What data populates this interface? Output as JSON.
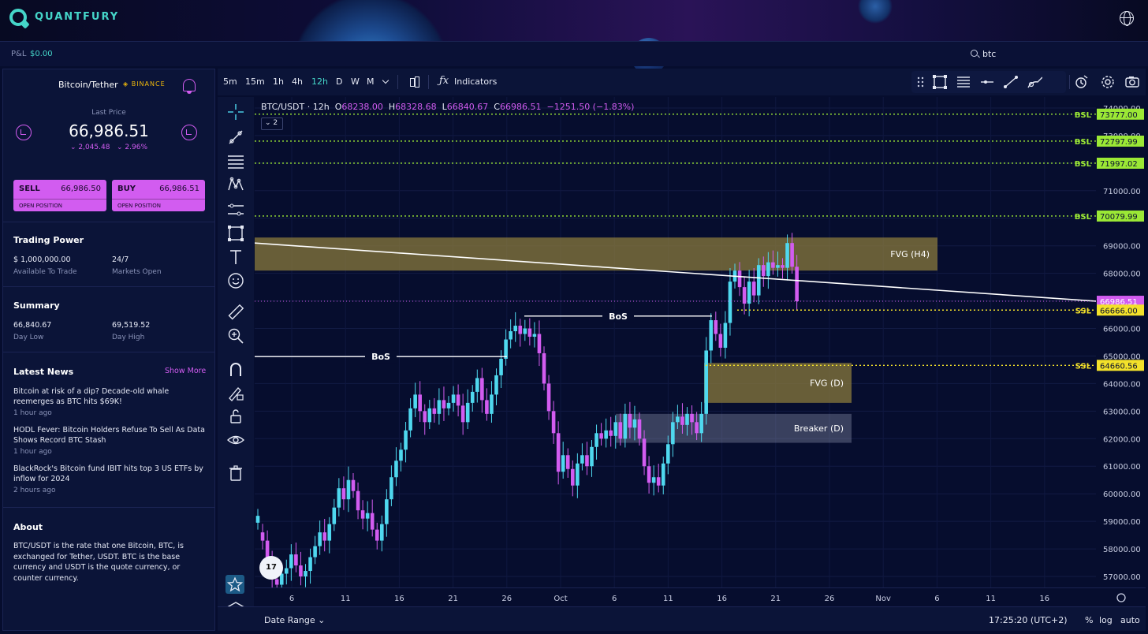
{
  "app": {
    "name": "QUANTFURY"
  },
  "pnl": {
    "label": "P&L",
    "value": "$0.00"
  },
  "search": {
    "value": "btc"
  },
  "instrument": {
    "name": "Bitcoin/Tether",
    "exchange": "BINANCE",
    "last_price_label": "Last Price",
    "last_price": "66,986.51",
    "change_abs": "⌄ 2,045.48",
    "change_pct": "⌄ 2.96%"
  },
  "sell": {
    "label": "SELL",
    "price": "66,986.50",
    "sub": "OPEN POSITION"
  },
  "buy": {
    "label": "BUY",
    "price": "66,986.51",
    "sub": "OPEN POSITION"
  },
  "trading_power": {
    "title": "Trading Power",
    "amount": "$ 1,000,000.00",
    "amount_label": "Available To Trade",
    "hours": "24/7",
    "hours_label": "Markets Open"
  },
  "summary": {
    "title": "Summary",
    "low": "66,840.67",
    "low_label": "Day Low",
    "high": "69,519.52",
    "high_label": "Day High"
  },
  "news": {
    "title": "Latest News",
    "show_more": "Show More",
    "items": [
      {
        "title": "Bitcoin at risk of a dip? Decade-old whale reemerges as BTC hits $69K!",
        "time": "1 hour ago"
      },
      {
        "title": "HODL Fever: Bitcoin Holders Refuse To Sell As Data Shows Record BTC Stash",
        "time": "1 hour ago"
      },
      {
        "title": "BlackRock's Bitcoin fund IBIT hits top 3 US ETFs by inflow for 2024",
        "time": "2 hours ago"
      }
    ]
  },
  "about": {
    "title": "About",
    "text": "BTC/USDT is the rate that one Bitcoin, BTC, is exchanged for Tether, USDT. BTC is the base currency and USDT is the quote currency, or counter currency."
  },
  "toolbar": {
    "timeframes": [
      "5m",
      "15m",
      "1h",
      "4h",
      "12h",
      "D",
      "W",
      "M"
    ],
    "active_timeframe": "12h",
    "indicators_label": "Indicators"
  },
  "chart": {
    "symbol": "BTC/USDT · 12h",
    "o_label": "O",
    "o": "68238.00",
    "h_label": "H",
    "h": "68328.68",
    "l_label": "L",
    "l": "66840.67",
    "c_label": "C",
    "c": "66986.51",
    "change": "−1251.50 (−1.83%)",
    "collapse_count": "2",
    "tv_logo": "17"
  },
  "bottom": {
    "date_range": "Date Range",
    "time": "17:25:20 (UTC+2)",
    "percent": "%",
    "log": "log",
    "auto": "auto"
  },
  "chart_data": {
    "type": "line",
    "title": "BTC/USDT · 12h",
    "y_ticks": [
      "74000.00",
      "73000.00",
      "72000.00",
      "71000.00",
      "70000.00",
      "69000.00",
      "68000.00",
      "67000.00",
      "66000.00",
      "65000.00",
      "64000.00",
      "63000.00",
      "62000.00",
      "61000.00",
      "60000.00",
      "59000.00",
      "58000.00",
      "57000.00"
    ],
    "ylim": [
      56600,
      74400
    ],
    "x_ticks": [
      "6",
      "11",
      "16",
      "21",
      "26",
      "Oct",
      "6",
      "11",
      "16",
      "21",
      "26",
      "Nov",
      "6",
      "11",
      "16"
    ],
    "levels": [
      {
        "label": "BSL",
        "price": "73777.00",
        "value": 73777,
        "color": "#9be835"
      },
      {
        "label": "BSL",
        "price": "72797.99",
        "value": 72798,
        "color": "#9be835"
      },
      {
        "label": "BSL",
        "price": "71997.02",
        "value": 71997,
        "color": "#9be835"
      },
      {
        "label": "BSL",
        "price": "70079.99",
        "value": 70080,
        "color": "#9be835"
      },
      {
        "label": "SSL",
        "price": "66666.00",
        "value": 66666,
        "color": "#f3e12a"
      },
      {
        "label": "SSL",
        "price": "64660.56",
        "value": 64661,
        "color": "#f3e12a"
      }
    ],
    "current_price": {
      "price": "66986.51",
      "value": 66986.51,
      "color": "#d25cf0"
    },
    "zones": [
      {
        "label": "FVG (H4)",
        "from": 68100,
        "to": 69300
      },
      {
        "label": "FVG (D)",
        "from": 63300,
        "to": 64750
      },
      {
        "label": "Breaker (D)",
        "from": 61850,
        "to": 62900
      }
    ],
    "bos": [
      {
        "label": "BoS",
        "value": 64980
      },
      {
        "label": "BoS",
        "value": 66450
      }
    ],
    "colors": {
      "up": "#4fd8ef",
      "down": "#d25cf0",
      "zone": "#8a7a3c",
      "breaker": "#9aa0b8",
      "trendline": "#ffffff"
    }
  }
}
